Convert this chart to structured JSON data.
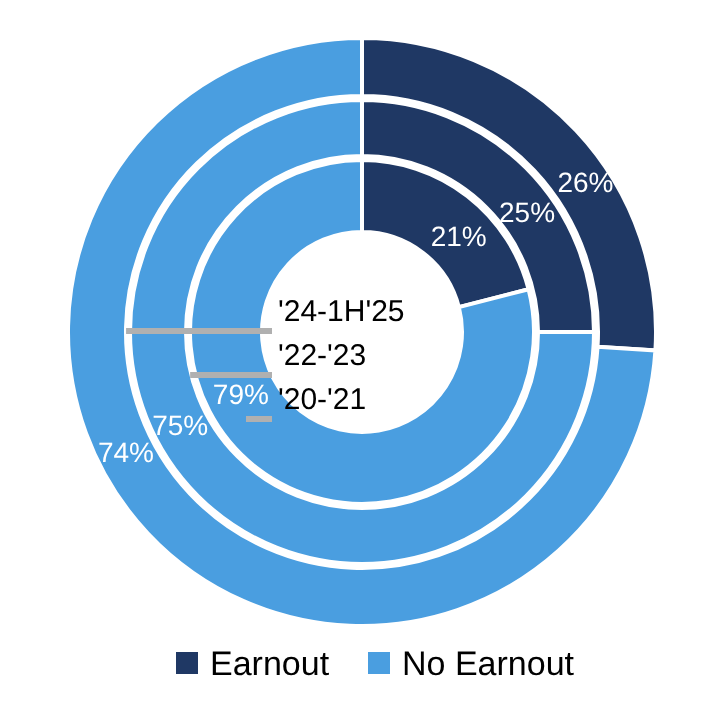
{
  "chart_data": [
    {
      "type": "donut",
      "title": "'24-1H'25",
      "categories": [
        "Earnout",
        "No Earnout"
      ],
      "colors": [
        "#1f3864",
        "#4a9ee0"
      ],
      "values": [
        26,
        74
      ],
      "value_labels": [
        "26%",
        "74%"
      ],
      "legend": "bottom"
    },
    {
      "type": "donut",
      "title": "'22-'23",
      "colors": [
        "#1f3864",
        "#4a9ee0"
      ],
      "values": [
        25,
        75
      ],
      "value_labels": [
        "25%",
        "75%"
      ]
    },
    {
      "type": "donut",
      "title": "'20-'21",
      "colors": [
        "#1f3864",
        "#4a9ee0"
      ],
      "values": [
        21,
        79
      ],
      "value_labels": [
        "21%",
        "79%"
      ]
    }
  ]
}
